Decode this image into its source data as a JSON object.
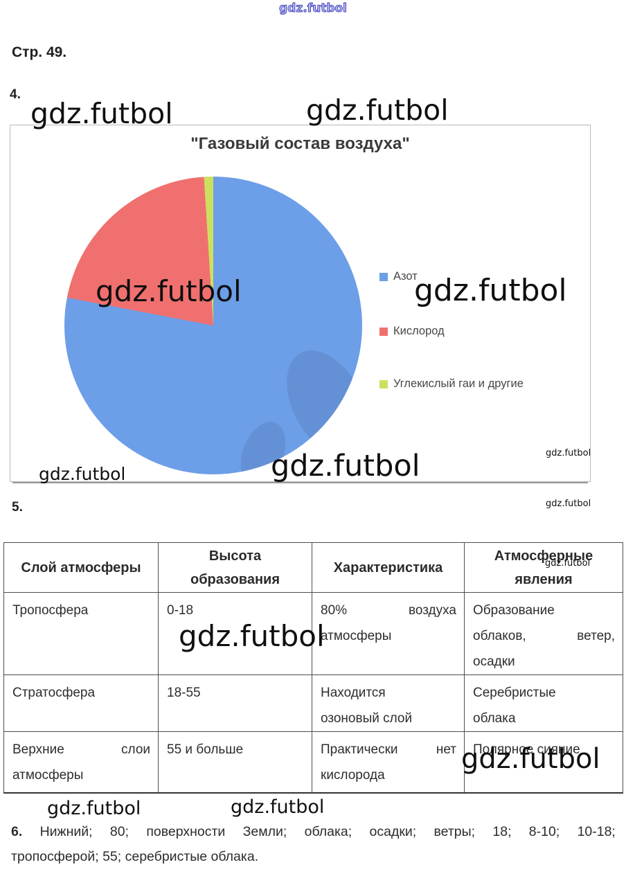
{
  "wm": "gdz.futbol",
  "page": {
    "page_label": "Стр. 49.",
    "sec4": "4.",
    "sec5": "5."
  },
  "chart_data": {
    "type": "pie",
    "title": "\"Газовый состав воздуха\"",
    "labels": [
      "Азот",
      "Кислород",
      "Углекислый гаи и другие"
    ],
    "values": [
      78,
      21,
      1
    ],
    "colors": [
      "#6d9ee8",
      "#f0706f",
      "#cde05e"
    ],
    "legend_position": "right",
    "start_angle_deg": 0,
    "direction": "clockwise"
  },
  "table": {
    "headers": [
      {
        "lines": [
          "Слой атмосферы"
        ]
      },
      {
        "lines": [
          "Высота",
          "образования"
        ]
      },
      {
        "lines": [
          "Характеристика"
        ]
      },
      {
        "lines": [
          "Атмосферные",
          "явления"
        ]
      }
    ],
    "rows": [
      {
        "cells": [
          [
            "Тропосфера"
          ],
          [
            "0-18"
          ],
          [
            [
              "80%",
              "воздуха"
            ],
            "атмосферы"
          ],
          [
            "Образование",
            [
              "облаков,",
              "ветер,"
            ],
            "осадки"
          ]
        ]
      },
      {
        "cells": [
          [
            "Стратосфера"
          ],
          [
            "18-55"
          ],
          [
            "Находится",
            "озоновый слой"
          ],
          [
            "Серебристые",
            "облака"
          ]
        ]
      },
      {
        "cells": [
          [
            [
              "Верхние",
              "слои"
            ],
            "атмосферы"
          ],
          [
            "55 и больше"
          ],
          [
            [
              "Практически",
              "нет"
            ],
            "кислорода"
          ],
          [
            "Полярное сияние"
          ]
        ]
      }
    ]
  },
  "answer6": {
    "line1_words": [
      "6.",
      "Нижний;",
      "80;",
      "поверхности",
      "Земли;",
      "облака;",
      "осадки;",
      "ветры;",
      "18;",
      "8-10;",
      "10-18;"
    ],
    "line2": "тропосферой; 55; серебристые облака."
  }
}
